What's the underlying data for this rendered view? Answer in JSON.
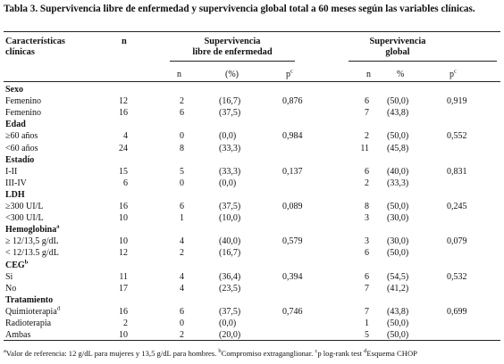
{
  "title": "Tabla 3. Supervivencia libre de enfermedad y supervivencia global total a 60 meses según las variables clínicas.",
  "header": {
    "col1": "Características",
    "col1b": "clínicas",
    "n": "n",
    "slefirst": "Supervivencia",
    "slesecond": "libre de enfermedad",
    "sgfirst": "Supervivencia",
    "sgsecond": "global",
    "sub": {
      "n": "n",
      "pct1": "(%)",
      "p1": "p",
      "p1sup": "c",
      "n2": "n",
      "pct2": "%",
      "p2": "p",
      "p2sup": "c"
    }
  },
  "categories": [
    {
      "label": "Sexo",
      "sup": "",
      "rows": [
        {
          "label": "Femenino",
          "sup": "",
          "n": "12",
          "sle_n": "2",
          "sle_pct": "(16,7)",
          "sle_p": "0,876",
          "sg_n": "6",
          "sg_pct": "(50,0)",
          "sg_p": "0,919"
        },
        {
          "label": "Femenino",
          "sup": "",
          "n": "16",
          "sle_n": "6",
          "sle_pct": "(37,5)",
          "sle_p": "",
          "sg_n": "7",
          "sg_pct": "(43,8)",
          "sg_p": ""
        }
      ]
    },
    {
      "label": "Edad",
      "sup": "",
      "rows": [
        {
          "label": "≥60 años",
          "sup": "",
          "n": "4",
          "sle_n": "0",
          "sle_pct": "(0,0)",
          "sle_p": "0,984",
          "sg_n": "2",
          "sg_pct": "(50,0)",
          "sg_p": "0,552"
        },
        {
          "label": "<60 años",
          "sup": "",
          "n": "24",
          "sle_n": "8",
          "sle_pct": "(33,3)",
          "sle_p": "",
          "sg_n": "11",
          "sg_pct": "(45,8)",
          "sg_p": ""
        }
      ]
    },
    {
      "label": "Estadío",
      "sup": "",
      "rows": [
        {
          "label": "I-II",
          "sup": "",
          "n": "15",
          "sle_n": "5",
          "sle_pct": "(33,3)",
          "sle_p": "0,137",
          "sg_n": "6",
          "sg_pct": "(40,0)",
          "sg_p": "0,831"
        },
        {
          "label": "III-IV",
          "sup": "",
          "n": "6",
          "sle_n": "0",
          "sle_pct": "(0,0)",
          "sle_p": "",
          "sg_n": "2",
          "sg_pct": "(33,3)",
          "sg_p": ""
        }
      ]
    },
    {
      "label": "LDH",
      "sup": "",
      "rows": [
        {
          "label": "≥300 UI/L",
          "sup": "",
          "n": "16",
          "sle_n": "6",
          "sle_pct": "(37,5)",
          "sle_p": "0,089",
          "sg_n": "8",
          "sg_pct": "(50,0)",
          "sg_p": "0,245"
        },
        {
          "label": "<300 UI/L",
          "sup": "",
          "n": "10",
          "sle_n": "1",
          "sle_pct": "(10,0)",
          "sle_p": "",
          "sg_n": "3",
          "sg_pct": "(30,0)",
          "sg_p": ""
        }
      ]
    },
    {
      "label": "Hemoglobina",
      "sup": "a",
      "rows": [
        {
          "label": "≥ 12/13,5 g/dL",
          "sup": "",
          "n": "10",
          "sle_n": "4",
          "sle_pct": "(40,0)",
          "sle_p": "0,579",
          "sg_n": "3",
          "sg_pct": "(30,0)",
          "sg_p": "0,079"
        },
        {
          "label": "< 12/13.5 g/dL",
          "sup": "",
          "n": "12",
          "sle_n": "2",
          "sle_pct": "(16,7)",
          "sle_p": "",
          "sg_n": "6",
          "sg_pct": "(50,0)",
          "sg_p": ""
        }
      ]
    },
    {
      "label": "CEG",
      "sup": "b",
      "rows": [
        {
          "label": "Si",
          "sup": "",
          "n": "11",
          "sle_n": "4",
          "sle_pct": "(36,4)",
          "sle_p": "0,394",
          "sg_n": "6",
          "sg_pct": "(54,5)",
          "sg_p": "0,532"
        },
        {
          "label": "No",
          "sup": "",
          "n": "17",
          "sle_n": "4",
          "sle_pct": "(23,5)",
          "sle_p": "",
          "sg_n": "7",
          "sg_pct": "(41,2)",
          "sg_p": ""
        }
      ]
    },
    {
      "label": "Tratamiento",
      "sup": "",
      "rows": [
        {
          "label": "Quimioterapia",
          "sup": "d",
          "n": "16",
          "sle_n": "6",
          "sle_pct": "(37,5)",
          "sle_p": "0,746",
          "sg_n": "7",
          "sg_pct": "(43,8)",
          "sg_p": "0,699"
        },
        {
          "label": "Radioterapia",
          "sup": "",
          "n": "2",
          "sle_n": "0",
          "sle_pct": "(0,0)",
          "sle_p": "",
          "sg_n": "1",
          "sg_pct": "(50,0)",
          "sg_p": ""
        },
        {
          "label": "Ambas",
          "sup": "",
          "n": "10",
          "sle_n": "2",
          "sle_pct": "(20,0)",
          "sle_p": "",
          "sg_n": "5",
          "sg_pct": "(50,0)",
          "sg_p": ""
        }
      ]
    }
  ],
  "footnote": {
    "a_sup": "a",
    "a_text": "Valor de referencia: 12 g/dL para mujeres y 13,5 g/dL para hombres. ",
    "b_sup": "b",
    "b_text": "Compromiso extraganglionar. ",
    "c_sup": "c",
    "c_text": "p log-rank test ",
    "d_sup": "d",
    "d_text": "Esquema CHOP"
  }
}
